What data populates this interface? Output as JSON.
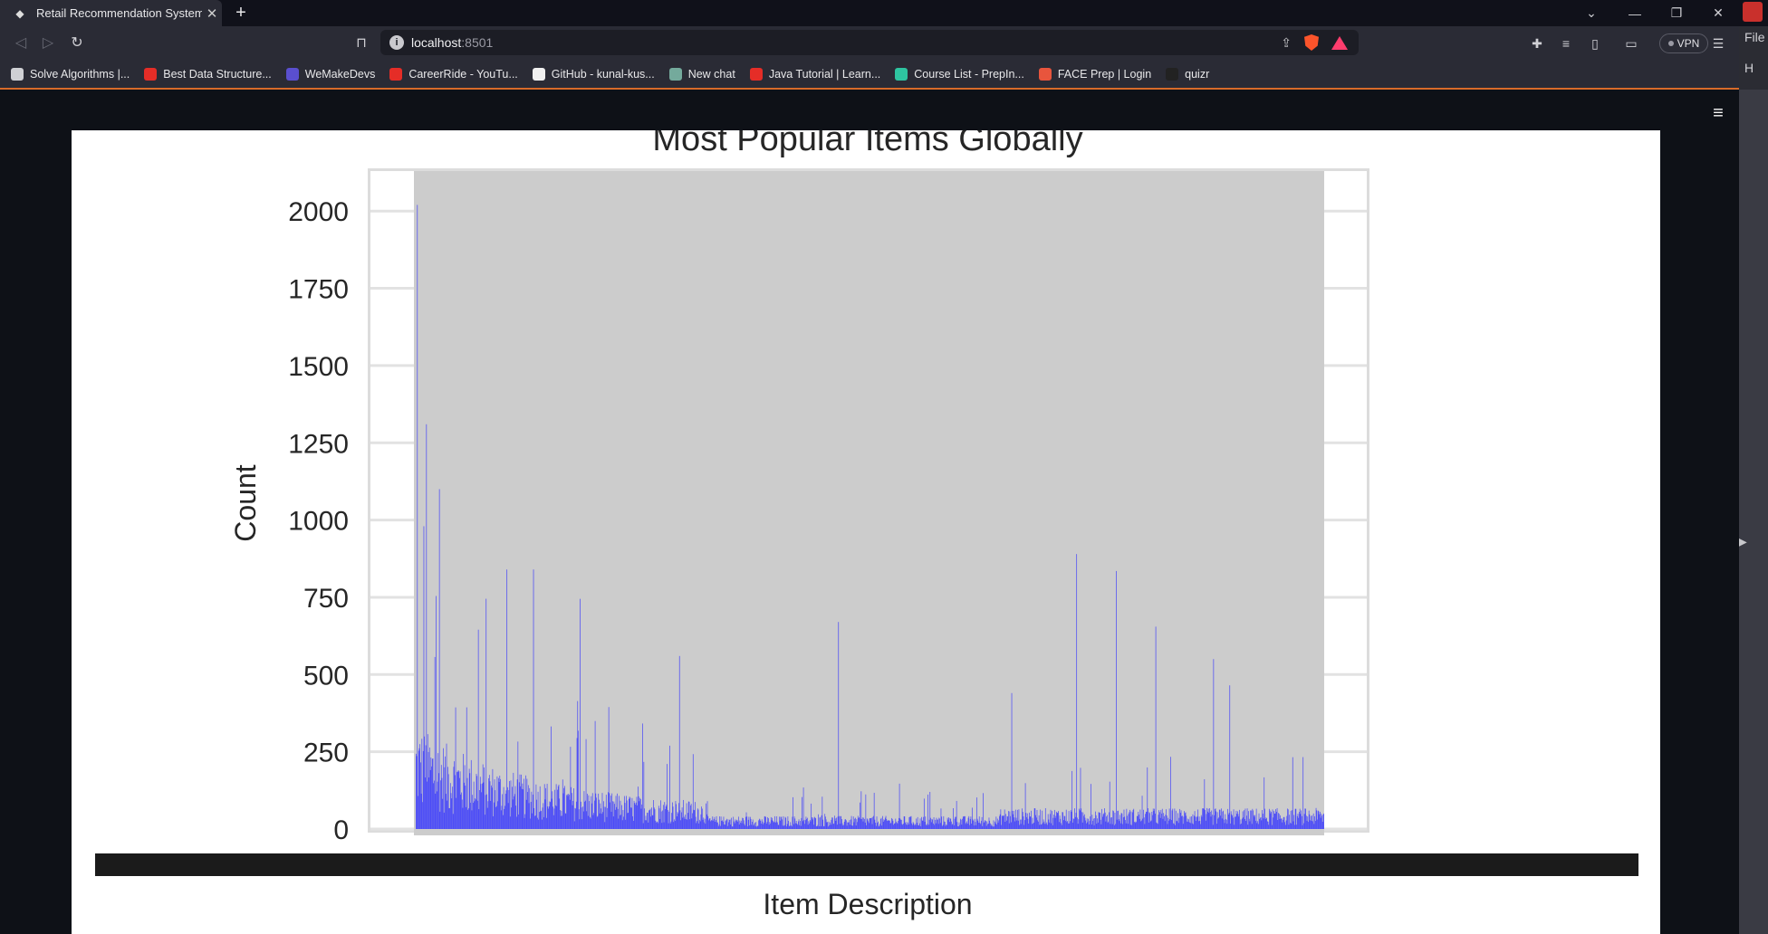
{
  "browser": {
    "tab_title": "Retail Recommendation System",
    "url_host": "localhost",
    "url_port": ":8501",
    "vpn_label": "VPN",
    "brave_badge": "1",
    "bookmarks": [
      {
        "label": "Solve Algorithms |...",
        "color": "#cfd0d4"
      },
      {
        "label": "Best Data Structure...",
        "color": "#e52d27"
      },
      {
        "label": "WeMakeDevs",
        "color": "#5a4fcf"
      },
      {
        "label": "CareerRide - YouTu...",
        "color": "#e52d27"
      },
      {
        "label": "GitHub - kunal-kus...",
        "color": "#f0f0f0"
      },
      {
        "label": "New chat",
        "color": "#74aa9c"
      },
      {
        "label": "Java Tutorial | Learn...",
        "color": "#e52d27"
      },
      {
        "label": "Course List - PrepIn...",
        "color": "#2ec4a0"
      },
      {
        "label": "FACE Prep | Login",
        "color": "#e8553d"
      },
      {
        "label": "quizr",
        "color": "#222222"
      }
    ],
    "side_panel_labels": [
      "File",
      "H"
    ]
  },
  "chart_data": {
    "type": "bar",
    "title": "Most Popular Items Globally",
    "xlabel": "Item Description",
    "ylabel": "Count",
    "ylim": [
      0,
      2150
    ],
    "yticks": [
      0,
      250,
      500,
      750,
      1000,
      1250,
      1500,
      1750,
      2000
    ],
    "bar_color": "#3333ff",
    "plot_background": "#cccccc",
    "grid": true,
    "n_categories": 1400,
    "category_labels": "overlapping, unreadable",
    "notable_peaks": [
      {
        "index": 2,
        "value": 2020
      },
      {
        "index": 16,
        "value": 1310
      },
      {
        "index": 36,
        "value": 1100
      },
      {
        "index": 12,
        "value": 980
      },
      {
        "index": 140,
        "value": 840
      },
      {
        "index": 181,
        "value": 840
      },
      {
        "index": 253,
        "value": 745
      },
      {
        "index": 1018,
        "value": 890
      },
      {
        "index": 1079,
        "value": 835
      },
      {
        "index": 651,
        "value": 670
      },
      {
        "index": 1140,
        "value": 655
      },
      {
        "index": 406,
        "value": 560
      },
      {
        "index": 1229,
        "value": 550
      },
      {
        "index": 1254,
        "value": 465
      },
      {
        "index": 918,
        "value": 440
      }
    ]
  }
}
